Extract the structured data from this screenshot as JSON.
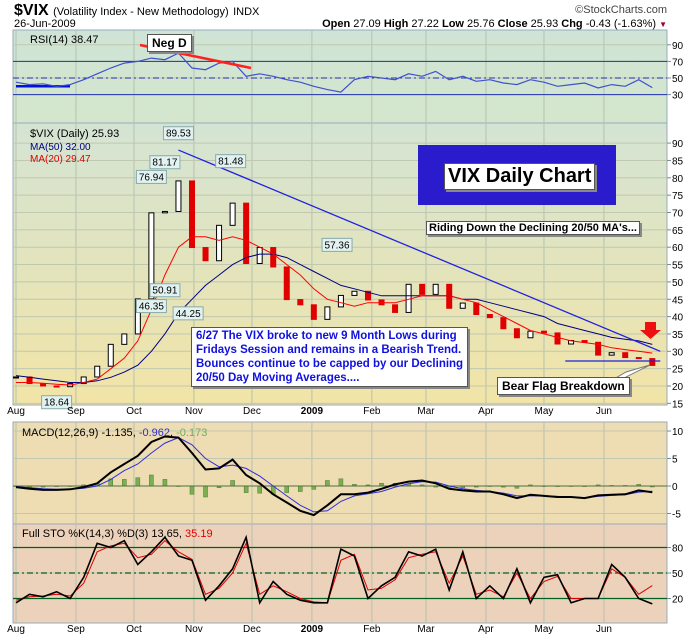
{
  "header": {
    "symbol": "$VIX",
    "name": "(Volatility Index - New Methodology)",
    "exchange": "INDX",
    "date": "26-Jun-2009",
    "brand": "©StockCharts.com",
    "open_label": "Open",
    "open": "27.09",
    "high_label": "High",
    "high": "27.22",
    "low_label": "Low",
    "low": "25.76",
    "close_label": "Close",
    "close": "25.93",
    "chg_label": "Chg",
    "chg": "-0.43 (-1.63%)"
  },
  "annotations": {
    "neg_d": "Neg D",
    "title_box": "VIX Daily Chart",
    "riding": "Riding Down the Declining 20/50 MA's...",
    "comment_lines": [
      "6/27   The VIX broke to new 9 Month Lows during",
      "Fridays Session and remains in a Bearish Trend.",
      "Bounces continue to be capped by our Declining",
      "20/50 Day Moving Averages...."
    ],
    "bear_flag": "Bear Flag Breakdown"
  },
  "colors": {
    "up": "#000000",
    "down": "#e00000",
    "ma50": "#000080",
    "ma20": "#ff0000",
    "trend": "#2020e0",
    "title_bg": "#2a1ccc",
    "annotation_text": "#1010e0",
    "macd_hist": "#7ab050",
    "sto_lines": "#006020"
  },
  "chart_data": [
    {
      "type": "line",
      "title": "RSI(14) 38.47",
      "ylim": [
        0,
        100
      ],
      "yticks": [
        "90",
        "70",
        "50",
        "30"
      ],
      "levels": [
        70,
        50,
        30
      ],
      "series": [
        {
          "name": "RSI(14)",
          "values": [
            45,
            42,
            43,
            40,
            42,
            48,
            55,
            62,
            68,
            70,
            74,
            72,
            80,
            62,
            60,
            68,
            70,
            52,
            55,
            52,
            48,
            45,
            40,
            36,
            33,
            48,
            52,
            50,
            48,
            55,
            52,
            58,
            48,
            52,
            46,
            48,
            44,
            42,
            48,
            45,
            40,
            42,
            44,
            38,
            42,
            40,
            48,
            38.47
          ]
        }
      ]
    },
    {
      "type": "candlestick",
      "legend": [
        "$VIX (Daily) 25.93",
        "MA(50) 32.00",
        "MA(20) 29.47"
      ],
      "ylim": [
        15,
        92
      ],
      "yticks": [
        "90",
        "85",
        "80",
        "75",
        "70",
        "65",
        "60",
        "55",
        "50",
        "45",
        "40",
        "35",
        "30",
        "25",
        "20",
        "15"
      ],
      "x": [
        "2008-08-01",
        "2008-08-08",
        "2008-08-15",
        "2008-08-22",
        "2008-08-29",
        "2008-09-05",
        "2008-09-12",
        "2008-09-19",
        "2008-09-26",
        "2008-10-03",
        "2008-10-10",
        "2008-10-17",
        "2008-10-24",
        "2008-10-31",
        "2008-11-07",
        "2008-11-14",
        "2008-11-21",
        "2008-11-28",
        "2008-12-05",
        "2008-12-12",
        "2008-12-19",
        "2008-12-26",
        "2009-01-02",
        "2009-01-09",
        "2009-01-16",
        "2009-01-23",
        "2009-01-30",
        "2009-02-06",
        "2009-02-13",
        "2009-02-20",
        "2009-02-27",
        "2009-03-06",
        "2009-03-13",
        "2009-03-20",
        "2009-03-27",
        "2009-04-03",
        "2009-04-10",
        "2009-04-17",
        "2009-04-24",
        "2009-05-01",
        "2009-05-08",
        "2009-05-15",
        "2009-05-22",
        "2009-05-29",
        "2009-06-05",
        "2009-06-12",
        "2009-06-19",
        "2009-06-26"
      ],
      "xticks": [
        {
          "label": "Aug",
          "date": "2008-08-01"
        },
        {
          "label": "Sep",
          "date": "2008-09-01"
        },
        {
          "label": "Oct",
          "date": "2008-10-01"
        },
        {
          "label": "Nov",
          "date": "2008-11-01"
        },
        {
          "label": "Dec",
          "date": "2008-12-01"
        },
        {
          "label": "2009",
          "date": "2009-01-01"
        },
        {
          "label": "Feb",
          "date": "2009-02-01"
        },
        {
          "label": "Mar",
          "date": "2009-03-01"
        },
        {
          "label": "Apr",
          "date": "2009-04-01"
        },
        {
          "label": "May",
          "date": "2009-05-01"
        },
        {
          "label": "Jun",
          "date": "2009-06-01"
        }
      ],
      "close": [
        22.6,
        20.7,
        20.0,
        19.8,
        20.7,
        22.6,
        25.7,
        32.0,
        35.0,
        45.1,
        69.9,
        70.3,
        79.1,
        59.9,
        56.1,
        66.3,
        72.7,
        55.3,
        59.9,
        54.3,
        44.9,
        43.4,
        39.2,
        42.8,
        46.1,
        47.3,
        44.8,
        43.4,
        41.2,
        49.3,
        46.4,
        49.3,
        42.4,
        43.9,
        40.6,
        39.7,
        36.5,
        33.9,
        35.8,
        35.3,
        32.1,
        33.1,
        32.6,
        28.9,
        29.6,
        28.2,
        27.9,
        25.93
      ],
      "ma20": [
        21,
        21,
        20.8,
        20.5,
        20.3,
        21,
        22,
        25,
        28,
        33,
        42,
        52,
        60,
        63,
        63,
        62,
        63,
        62,
        60,
        58,
        55,
        52,
        48,
        45,
        44,
        43,
        44,
        44,
        44,
        45,
        46,
        46,
        46,
        45,
        44,
        42,
        40,
        38,
        36,
        35,
        34,
        33,
        32.5,
        32,
        31,
        30.5,
        30,
        29.47
      ],
      "ma50": [
        23,
        22.5,
        22,
        21.5,
        21,
        21,
        21.5,
        22.5,
        24,
        26,
        30,
        35,
        41,
        45,
        49,
        52,
        55,
        57,
        58,
        58,
        57,
        55,
        53,
        51,
        49,
        48,
        47,
        46,
        46,
        46,
        46,
        46,
        46,
        45,
        45,
        44,
        43,
        42,
        41,
        40,
        38,
        37,
        36,
        35,
        34,
        33.5,
        33,
        32
      ],
      "price_labels": [
        {
          "text": "18.64",
          "date": "2008-08-22",
          "value": 18.64,
          "pos": "below"
        },
        {
          "text": "76.94",
          "date": "2008-10-10",
          "value": 76.94,
          "pos": "above"
        },
        {
          "text": "81.17",
          "date": "2008-10-17",
          "value": 81.17,
          "pos": "above"
        },
        {
          "text": "46.35",
          "date": "2008-10-10",
          "value": 46.35,
          "pos": "below"
        },
        {
          "text": "50.91",
          "date": "2008-10-17",
          "value": 50.91,
          "pos": "below"
        },
        {
          "text": "89.53",
          "date": "2008-10-24",
          "value": 89.53,
          "pos": "above"
        },
        {
          "text": "44.25",
          "date": "2008-10-29",
          "value": 44.25,
          "pos": "below"
        },
        {
          "text": "81.48",
          "date": "2008-11-20",
          "value": 81.48,
          "pos": "above"
        },
        {
          "text": "57.36",
          "date": "2009-01-14",
          "value": 57.36,
          "pos": "above"
        }
      ],
      "trendline": [
        {
          "date": "2008-10-24",
          "value": 88
        },
        {
          "date": "2009-06-26",
          "value": 30
        }
      ],
      "support": [
        {
          "date": "2009-05-12",
          "value": 27.2
        },
        {
          "date": "2009-06-26",
          "value": 27.2
        }
      ]
    },
    {
      "type": "line",
      "title": "MACD(12,26,9)",
      "values_text": [
        "-1.135",
        "-0.962",
        "-0.173"
      ],
      "ylim": [
        -6.5,
        10.5
      ],
      "yticks": [
        "10",
        "5",
        "0",
        "-5"
      ],
      "series": [
        {
          "name": "MACD",
          "values": [
            -0.2,
            -0.5,
            -0.7,
            -0.7,
            -0.6,
            -0.2,
            0.5,
            2.5,
            4,
            5.5,
            8,
            9,
            8.8,
            6,
            3,
            3.2,
            4.8,
            2,
            0.5,
            -1.5,
            -3,
            -4.5,
            -5.3,
            -3.5,
            -1.5,
            -1.5,
            -1.2,
            -0.5,
            0.3,
            0.8,
            1,
            0.5,
            -0.5,
            -0.8,
            -1,
            -1,
            -1.5,
            -2.2,
            -1.6,
            -1.8,
            -2,
            -2,
            -2.2,
            -1.7,
            -1.6,
            -1.5,
            -0.8,
            -1.135
          ]
        },
        {
          "name": "Signal",
          "values": [
            -0.1,
            -0.3,
            -0.5,
            -0.6,
            -0.6,
            -0.4,
            0,
            1.2,
            2.8,
            4,
            6,
            7.8,
            8.8,
            7.5,
            5,
            3.5,
            3.8,
            3.2,
            1.8,
            0,
            -1.8,
            -3.5,
            -4.7,
            -4.5,
            -2.8,
            -1.8,
            -1.4,
            -1,
            -0.2,
            0.4,
            0.8,
            0.7,
            0,
            -0.5,
            -0.8,
            -1,
            -1.3,
            -1.8,
            -1.8,
            -1.8,
            -1.9,
            -2,
            -2.1,
            -1.9,
            -1.7,
            -1.6,
            -1.1,
            -0.962
          ]
        }
      ]
    },
    {
      "type": "line",
      "title": "Full STO %K(14,3) %D(3)",
      "values_text": [
        "13.65",
        "35.19"
      ],
      "ylim": [
        0,
        100
      ],
      "yticks": [
        "80",
        "50",
        "20"
      ],
      "levels": [
        80,
        50,
        20
      ],
      "series": [
        {
          "name": "%K",
          "values": [
            15,
            25,
            22,
            28,
            20,
            45,
            85,
            80,
            88,
            60,
            75,
            92,
            70,
            65,
            18,
            35,
            55,
            92,
            15,
            40,
            25,
            18,
            15,
            15,
            78,
            70,
            20,
            35,
            45,
            75,
            70,
            78,
            30,
            75,
            20,
            35,
            20,
            55,
            15,
            45,
            48,
            15,
            20,
            20,
            60,
            45,
            20,
            13.65
          ]
        },
        {
          "name": "%D",
          "values": [
            18,
            22,
            23,
            25,
            23,
            38,
            75,
            82,
            85,
            68,
            72,
            88,
            75,
            66,
            25,
            32,
            50,
            85,
            25,
            35,
            28,
            20,
            16,
            15,
            65,
            72,
            30,
            32,
            42,
            68,
            72,
            75,
            38,
            70,
            25,
            30,
            22,
            50,
            20,
            40,
            46,
            20,
            20,
            20,
            55,
            45,
            25,
            35.19
          ]
        }
      ]
    }
  ]
}
